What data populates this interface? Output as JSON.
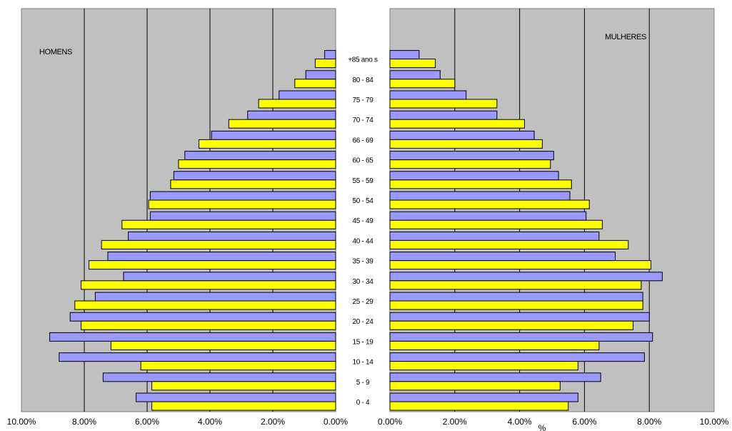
{
  "chart_data": {
    "type": "bar",
    "categories": [
      "0 - 4",
      "5 - 9",
      "10 - 14",
      "15 - 19",
      "20 - 24",
      "25 - 29",
      "30 - 34",
      "35 - 39",
      "40 - 44",
      "45 - 49",
      "50 - 54",
      "55 - 59",
      "60 - 65",
      "66 - 69",
      "70 - 74",
      "75 - 79",
      "80 - 84",
      "+85 ano s"
    ],
    "panels": [
      {
        "title": "HOMENS",
        "side": "left",
        "xlim": [
          0,
          10
        ],
        "tick_labels": [
          "10.00%",
          "8.00%",
          "6.00%",
          "4.00%",
          "2.00%",
          "0.00%"
        ],
        "series": [
          {
            "color": "#9999ff",
            "values": [
              6.35,
              7.4,
              8.8,
              9.1,
              8.45,
              7.65,
              6.75,
              7.25,
              6.6,
              5.9,
              5.9,
              5.15,
              4.8,
              3.95,
              2.8,
              1.8,
              0.95,
              0.35
            ]
          },
          {
            "color": "#ffff00",
            "values": [
              5.85,
              5.85,
              6.2,
              7.15,
              8.1,
              8.3,
              8.1,
              7.85,
              7.45,
              6.8,
              5.95,
              5.25,
              5.0,
              4.35,
              3.4,
              2.45,
              1.3,
              0.65
            ]
          }
        ]
      },
      {
        "title": "MULHERES",
        "side": "right",
        "xlim": [
          0,
          10
        ],
        "xlabel": "%",
        "tick_labels": [
          "0.00%",
          "2.00%",
          "4.00%",
          "6.00%",
          "8.00%",
          "10.00%"
        ],
        "series": [
          {
            "color": "#9999ff",
            "values": [
              5.8,
              6.5,
              7.85,
              8.1,
              8.0,
              7.8,
              8.4,
              6.95,
              6.45,
              6.05,
              5.55,
              5.2,
              5.05,
              4.45,
              3.3,
              2.35,
              1.55,
              0.9
            ]
          },
          {
            "color": "#ffff00",
            "values": [
              5.5,
              5.25,
              5.8,
              6.45,
              7.5,
              7.8,
              7.75,
              8.05,
              7.35,
              6.55,
              6.15,
              5.6,
              4.95,
              4.7,
              4.15,
              3.3,
              2.0,
              1.4
            ]
          }
        ]
      }
    ],
    "grid": true,
    "plot_background": "#c0c0c0",
    "gridline_color": "#000000"
  }
}
